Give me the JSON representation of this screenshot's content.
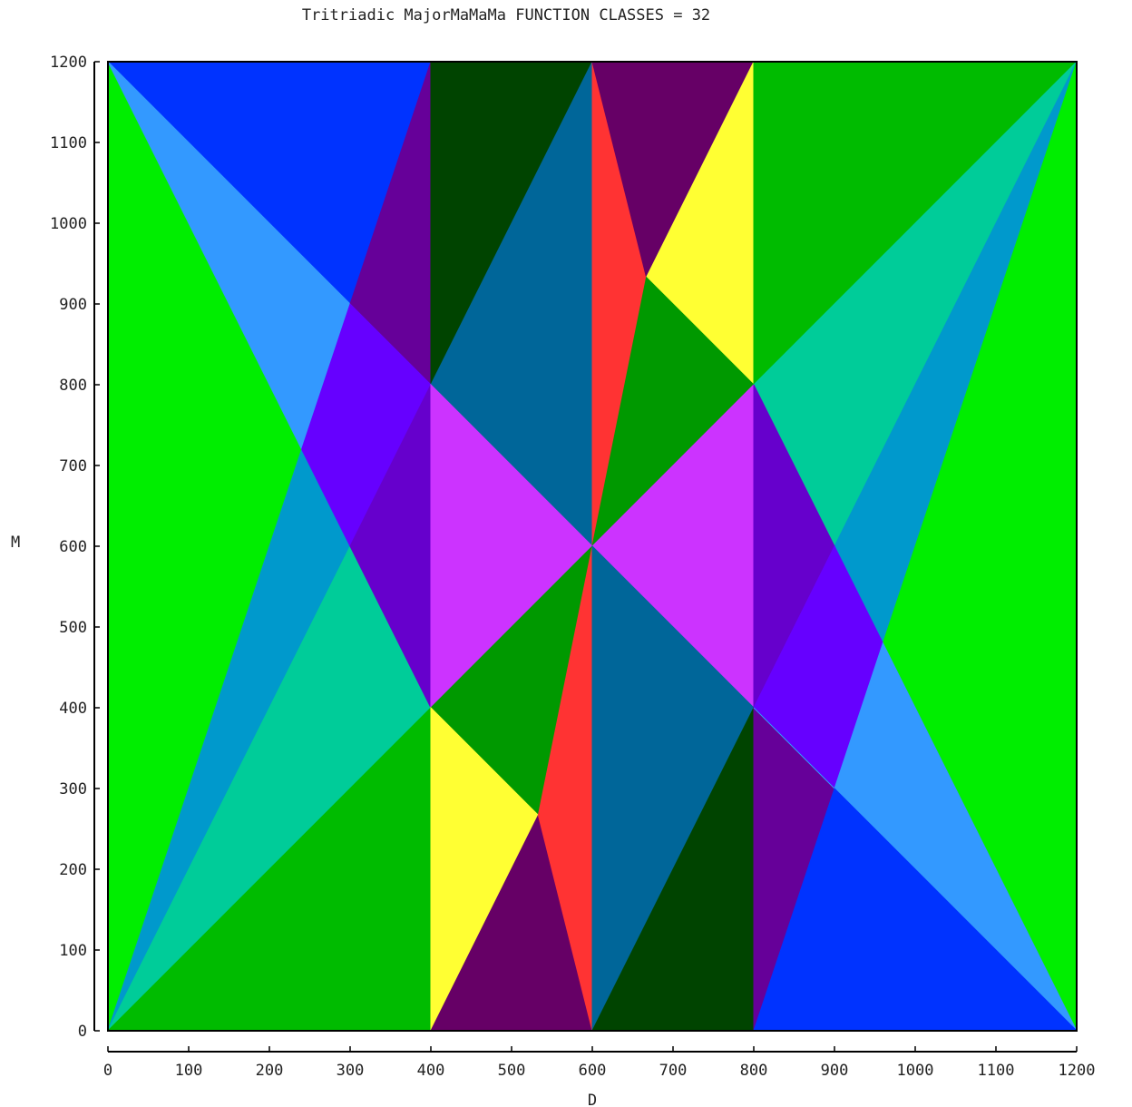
{
  "chart_data": {
    "type": "heatmap",
    "title": "Tritriadic MajorMaMaMa FUNCTION CLASSES = 32",
    "xlabel": "D",
    "ylabel": "M",
    "xlim": [
      0,
      1200
    ],
    "ylim": [
      0,
      1200
    ],
    "xticks": [
      "0",
      "100",
      "200",
      "300",
      "400",
      "500",
      "600",
      "700",
      "800",
      "900",
      "1000",
      "1100",
      "1200"
    ],
    "yticks": [
      "0",
      "100",
      "200",
      "300",
      "400",
      "500",
      "600",
      "700",
      "800",
      "900",
      "1000",
      "1100",
      "1200"
    ],
    "grid": false,
    "regions": [
      {
        "color": "#00ee00",
        "points": [
          [
            0,
            0
          ],
          [
            0,
            1200
          ],
          [
            240,
            720
          ],
          [
            0,
            0
          ]
        ]
      },
      {
        "color": "#0099cc",
        "points": [
          [
            0,
            0
          ],
          [
            240,
            720
          ],
          [
            300,
            600
          ],
          [
            0,
            0
          ]
        ]
      },
      {
        "color": "#00cc99",
        "points": [
          [
            0,
            0
          ],
          [
            300,
            600
          ],
          [
            400,
            400
          ],
          [
            0,
            0
          ]
        ]
      },
      {
        "color": "#00bb00",
        "points": [
          [
            0,
            0
          ],
          [
            400,
            400
          ],
          [
            400,
            0
          ]
        ]
      },
      {
        "color": "#0033ff",
        "points": [
          [
            0,
            1200
          ],
          [
            400,
            1200
          ],
          [
            400,
            800
          ]
        ]
      },
      {
        "color": "#3399ff",
        "points": [
          [
            0,
            1200
          ],
          [
            400,
            800
          ],
          [
            300,
            900
          ],
          [
            240,
            720
          ]
        ]
      },
      {
        "color": "#660099",
        "points": [
          [
            300,
            900
          ],
          [
            400,
            1200
          ],
          [
            400,
            800
          ]
        ]
      },
      {
        "color": "#6600ff",
        "points": [
          [
            240,
            720
          ],
          [
            300,
            900
          ],
          [
            400,
            800
          ],
          [
            300,
            600
          ]
        ]
      },
      {
        "color": "#6600cc",
        "points": [
          [
            300,
            600
          ],
          [
            400,
            800
          ],
          [
            400,
            400
          ]
        ]
      },
      {
        "color": "#004400",
        "points": [
          [
            400,
            1200
          ],
          [
            600,
            1200
          ],
          [
            400,
            800
          ]
        ]
      },
      {
        "color": "#006699",
        "points": [
          [
            400,
            800
          ],
          [
            600,
            1200
          ],
          [
            600,
            600
          ]
        ]
      },
      {
        "color": "#cc33ff",
        "points": [
          [
            400,
            800
          ],
          [
            600,
            600
          ],
          [
            400,
            400
          ]
        ]
      },
      {
        "color": "#009900",
        "points": [
          [
            400,
            400
          ],
          [
            600,
            600
          ],
          [
            533,
            267
          ]
        ]
      },
      {
        "color": "#ffff33",
        "points": [
          [
            400,
            400
          ],
          [
            533,
            267
          ],
          [
            400,
            0
          ]
        ]
      },
      {
        "color": "#660066",
        "points": [
          [
            400,
            0
          ],
          [
            533,
            267
          ],
          [
            600,
            0
          ]
        ]
      },
      {
        "color": "#ff3333",
        "points": [
          [
            533,
            267
          ],
          [
            600,
            600
          ],
          [
            600,
            0
          ]
        ]
      },
      {
        "color": "#ff3333",
        "points": [
          [
            600,
            1200
          ],
          [
            667,
            933
          ],
          [
            600,
            600
          ]
        ]
      },
      {
        "color": "#660066",
        "points": [
          [
            600,
            1200
          ],
          [
            800,
            1200
          ],
          [
            667,
            933
          ]
        ]
      },
      {
        "color": "#ffff33",
        "points": [
          [
            667,
            933
          ],
          [
            800,
            1200
          ],
          [
            800,
            800
          ]
        ]
      },
      {
        "color": "#009900",
        "points": [
          [
            600,
            600
          ],
          [
            667,
            933
          ],
          [
            800,
            800
          ]
        ]
      },
      {
        "color": "#cc33ff",
        "points": [
          [
            600,
            600
          ],
          [
            800,
            800
          ],
          [
            800,
            400
          ]
        ]
      },
      {
        "color": "#006699",
        "points": [
          [
            600,
            600
          ],
          [
            800,
            400
          ],
          [
            600,
            0
          ]
        ]
      },
      {
        "color": "#004400",
        "points": [
          [
            600,
            0
          ],
          [
            800,
            400
          ],
          [
            800,
            0
          ]
        ]
      },
      {
        "color": "#00bb00",
        "points": [
          [
            800,
            800
          ],
          [
            800,
            1200
          ],
          [
            1200,
            1200
          ]
        ]
      },
      {
        "color": "#00cc99",
        "points": [
          [
            800,
            800
          ],
          [
            1200,
            1200
          ],
          [
            900,
            600
          ]
        ]
      },
      {
        "color": "#0099cc",
        "points": [
          [
            900,
            600
          ],
          [
            1200,
            1200
          ],
          [
            960,
            480
          ]
        ]
      },
      {
        "color": "#00ee00",
        "points": [
          [
            960,
            480
          ],
          [
            1200,
            1200
          ],
          [
            1200,
            0
          ]
        ]
      },
      {
        "color": "#6600cc",
        "points": [
          [
            800,
            800
          ],
          [
            900,
            600
          ],
          [
            800,
            400
          ]
        ]
      },
      {
        "color": "#6600ff",
        "points": [
          [
            800,
            400
          ],
          [
            900,
            600
          ],
          [
            960,
            480
          ],
          [
            900,
            300
          ]
        ]
      },
      {
        "color": "#660099",
        "points": [
          [
            800,
            400
          ],
          [
            900,
            300
          ],
          [
            800,
            0
          ]
        ]
      },
      {
        "color": "#3399ff",
        "points": [
          [
            900,
            300
          ],
          [
            960,
            480
          ],
          [
            1200,
            0
          ],
          [
            800,
            400
          ]
        ]
      },
      {
        "color": "#0033ff",
        "points": [
          [
            800,
            0
          ],
          [
            900,
            300
          ],
          [
            1200,
            0
          ]
        ]
      }
    ]
  }
}
